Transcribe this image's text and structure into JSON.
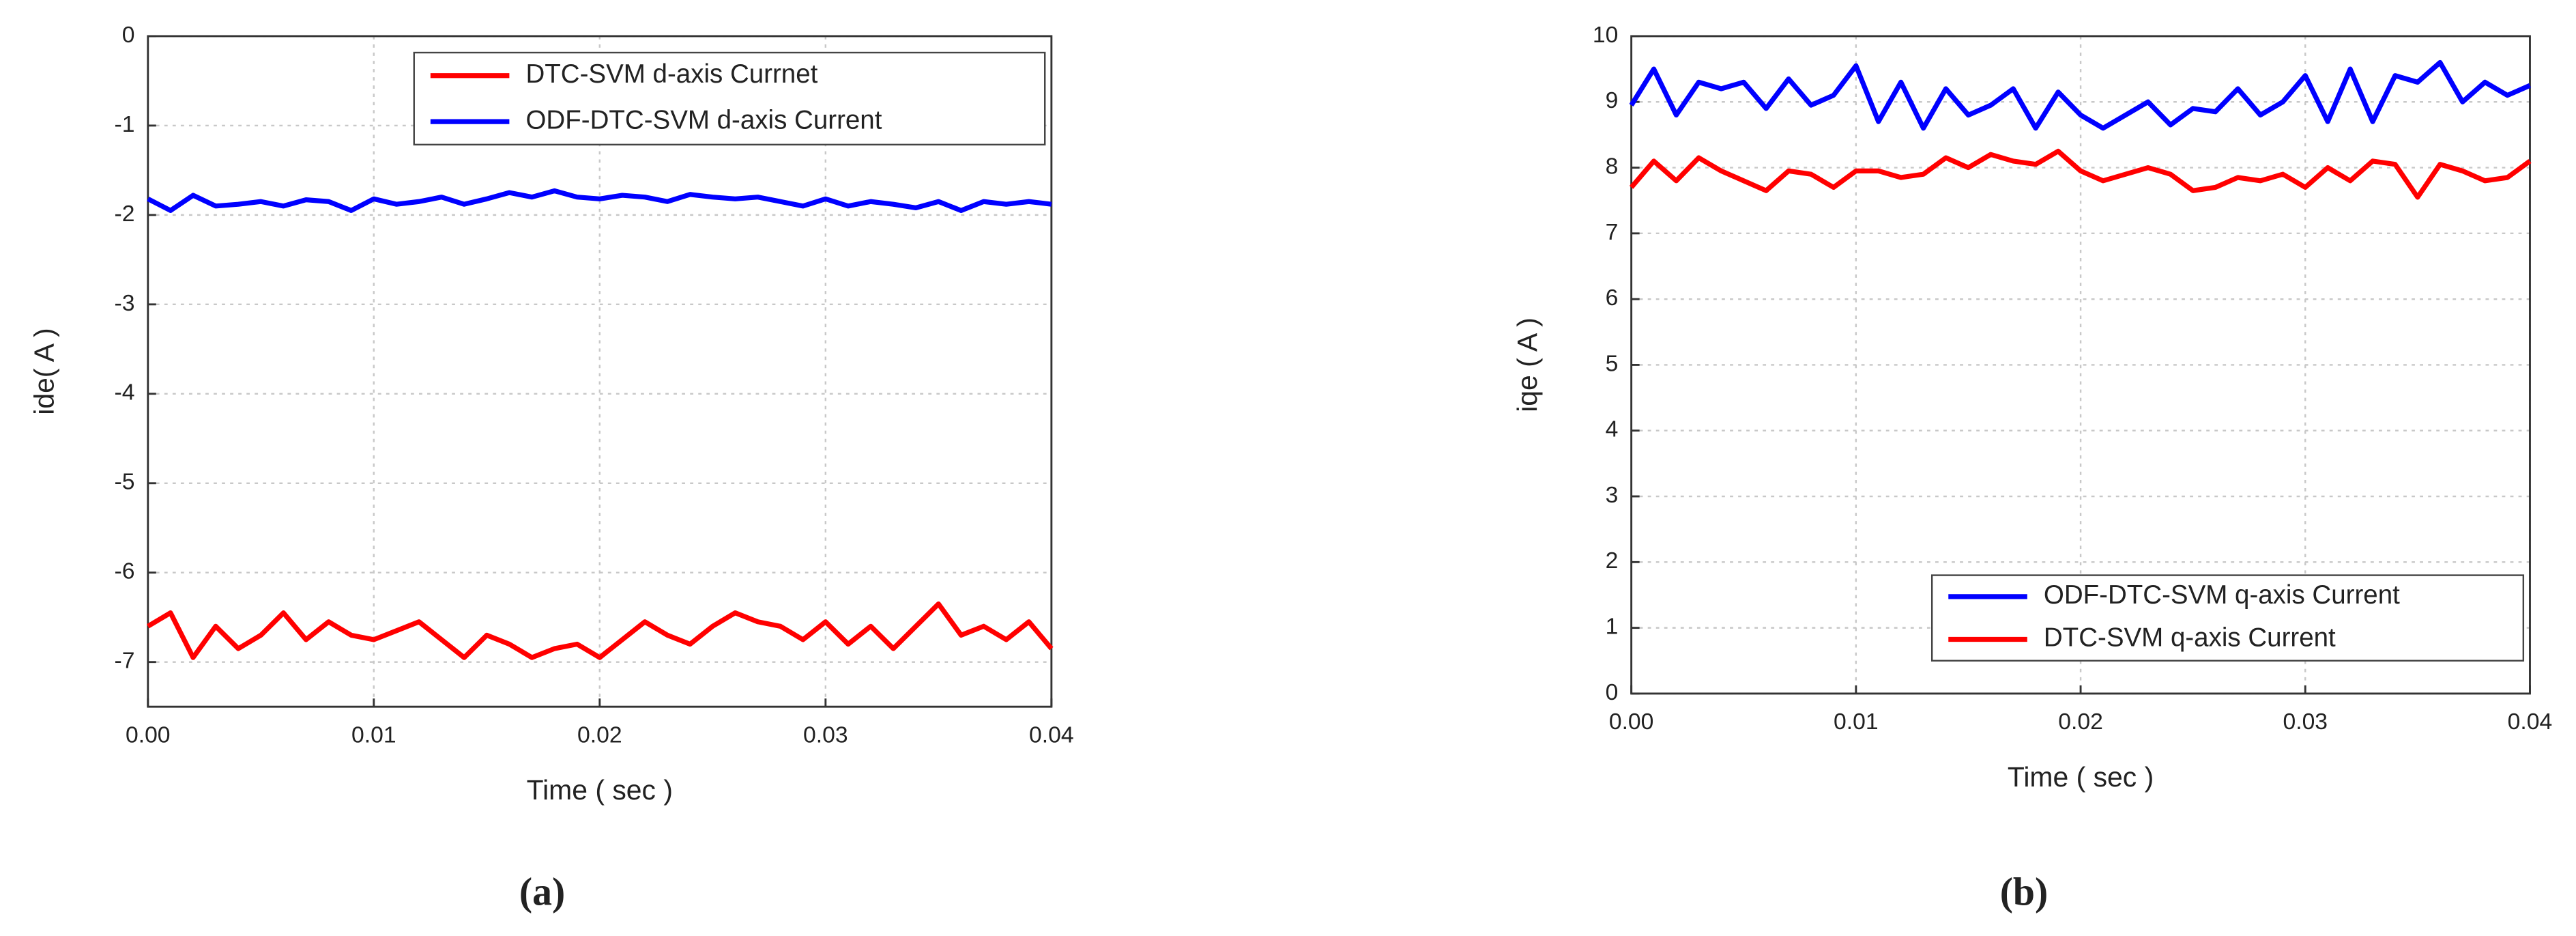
{
  "chart_data": [
    {
      "type": "line",
      "caption": "(a)",
      "xlabel": "Time ( sec )",
      "ylabel": "ide( A )",
      "x": [
        0,
        0.001,
        0.002,
        0.003,
        0.004,
        0.005,
        0.006,
        0.007,
        0.008,
        0.009,
        0.01,
        0.011,
        0.012,
        0.013,
        0.014,
        0.015,
        0.016,
        0.017,
        0.018,
        0.019,
        0.02,
        0.021,
        0.022,
        0.023,
        0.024,
        0.025,
        0.026,
        0.027,
        0.028,
        0.029,
        0.03,
        0.031,
        0.032,
        0.033,
        0.034,
        0.035,
        0.036,
        0.037,
        0.038,
        0.039,
        0.04
      ],
      "series": [
        {
          "name": "DTC-SVM d-axis Currnet",
          "color": "#ff0000",
          "values": [
            -6.6,
            -6.45,
            -6.95,
            -6.6,
            -6.85,
            -6.7,
            -6.45,
            -6.75,
            -6.55,
            -6.7,
            -6.75,
            -6.65,
            -6.55,
            -6.75,
            -6.95,
            -6.7,
            -6.8,
            -6.95,
            -6.85,
            -6.8,
            -6.95,
            -6.75,
            -6.55,
            -6.7,
            -6.8,
            -6.6,
            -6.45,
            -6.55,
            -6.6,
            -6.75,
            -6.55,
            -6.8,
            -6.6,
            -6.85,
            -6.6,
            -6.35,
            -6.7,
            -6.6,
            -6.75,
            -6.55,
            -6.85
          ]
        },
        {
          "name": "ODF-DTC-SVM d-axis Current",
          "color": "#0000ff",
          "values": [
            -1.82,
            -1.95,
            -1.78,
            -1.9,
            -1.88,
            -1.85,
            -1.9,
            -1.83,
            -1.85,
            -1.95,
            -1.82,
            -1.88,
            -1.85,
            -1.8,
            -1.88,
            -1.82,
            -1.75,
            -1.8,
            -1.73,
            -1.8,
            -1.82,
            -1.78,
            -1.8,
            -1.85,
            -1.77,
            -1.8,
            -1.82,
            -1.8,
            -1.85,
            -1.9,
            -1.82,
            -1.9,
            -1.85,
            -1.88,
            -1.92,
            -1.85,
            -1.95,
            -1.85,
            -1.88,
            -1.85,
            -1.88
          ]
        }
      ],
      "xlim": [
        0,
        0.04
      ],
      "xticks": [
        {
          "value": 0,
          "label": "0.00"
        },
        0.01,
        0.02,
        0.03,
        0.04
      ],
      "ylim": [
        -7.5,
        0
      ],
      "yticks": [
        0,
        -1,
        -2,
        -3,
        -4,
        -5,
        -6,
        -7
      ],
      "grid": true,
      "legend": "upper right"
    },
    {
      "type": "line",
      "caption": "(b)",
      "xlabel": "Time ( sec )",
      "ylabel": "iqe ( A )",
      "x": [
        0,
        0.001,
        0.002,
        0.003,
        0.004,
        0.005,
        0.006,
        0.007,
        0.008,
        0.009,
        0.01,
        0.011,
        0.012,
        0.013,
        0.014,
        0.015,
        0.016,
        0.017,
        0.018,
        0.019,
        0.02,
        0.021,
        0.022,
        0.023,
        0.024,
        0.025,
        0.026,
        0.027,
        0.028,
        0.029,
        0.03,
        0.031,
        0.032,
        0.033,
        0.034,
        0.035,
        0.036,
        0.037,
        0.038,
        0.039,
        0.04
      ],
      "series": [
        {
          "name": "ODF-DTC-SVM q-axis Current",
          "color": "#0000ff",
          "values": [
            8.95,
            9.5,
            8.8,
            9.3,
            9.2,
            9.3,
            8.9,
            9.35,
            8.95,
            9.1,
            9.55,
            8.7,
            9.3,
            8.6,
            9.2,
            8.8,
            8.95,
            9.2,
            8.6,
            9.15,
            8.8,
            8.6,
            8.8,
            9.0,
            8.65,
            8.9,
            8.85,
            9.2,
            8.8,
            9.0,
            9.4,
            8.7,
            9.5,
            8.7,
            9.4,
            9.3,
            9.6,
            9.0,
            9.3,
            9.1,
            9.25
          ]
        },
        {
          "name": "DTC-SVM q-axis Current",
          "color": "#ff0000",
          "values": [
            7.7,
            8.1,
            7.8,
            8.15,
            7.95,
            7.8,
            7.65,
            7.95,
            7.9,
            7.7,
            7.95,
            7.95,
            7.85,
            7.9,
            8.15,
            8.0,
            8.2,
            8.1,
            8.05,
            8.25,
            7.95,
            7.8,
            7.9,
            8.0,
            7.9,
            7.65,
            7.7,
            7.85,
            7.8,
            7.9,
            7.7,
            8.0,
            7.8,
            8.1,
            8.05,
            7.55,
            8.05,
            7.95,
            7.8,
            7.85,
            8.1
          ]
        }
      ],
      "xlim": [
        0,
        0.04
      ],
      "xticks": [
        {
          "value": 0,
          "label": "0.00"
        },
        0.01,
        0.02,
        0.03,
        0.04
      ],
      "ylim": [
        0,
        10
      ],
      "yticks": [
        0,
        1,
        2,
        3,
        4,
        5,
        6,
        7,
        8,
        9,
        10
      ],
      "grid": true,
      "legend": "lower right"
    }
  ]
}
